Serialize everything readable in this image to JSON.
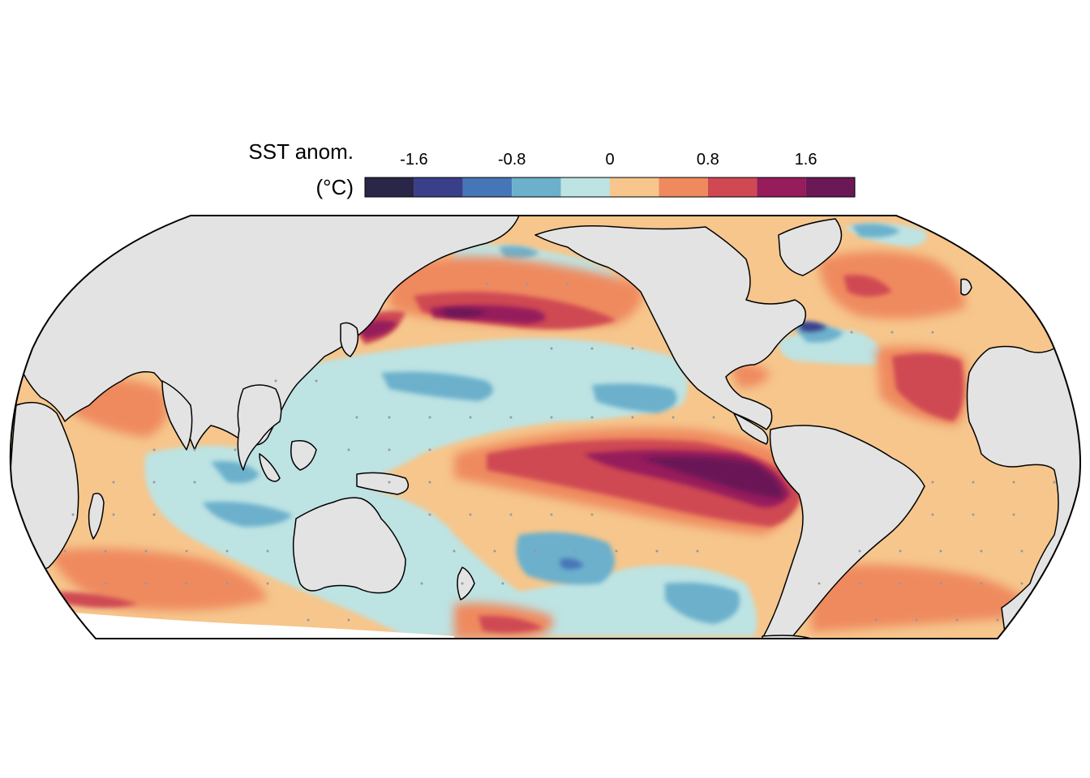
{
  "legend": {
    "title_line1": "SST anom.",
    "title_line2": "(°C)",
    "tick_labels": [
      "-1.6",
      "-0.8",
      "0",
      "0.8",
      "1.6"
    ],
    "tick_values": [
      -1.6,
      -0.8,
      0,
      0.8,
      1.6
    ],
    "range": [
      -2.0,
      2.0
    ],
    "bin_width": 0.4,
    "colors": [
      "#2a2647",
      "#3a3f8a",
      "#4676b8",
      "#6cb0cc",
      "#bde3e3",
      "#f6c68c",
      "#ef8a5e",
      "#cf4852",
      "#961c5c",
      "#6b1856"
    ]
  },
  "map": {
    "projection": "robinson",
    "center_longitude": "Pacific",
    "land_color": "#e3e3e3",
    "coastline_color": "#000000",
    "stipple_color": "#999999"
  }
}
